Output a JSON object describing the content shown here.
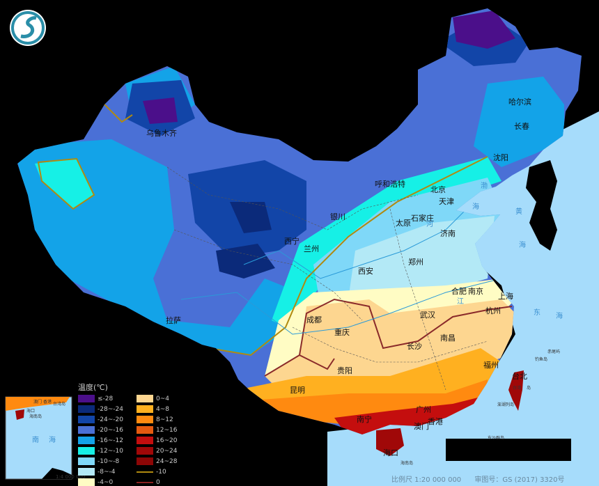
{
  "map": {
    "legend": {
      "title": "温度(℃)",
      "items": [
        {
          "label": "≤-28",
          "color": "#4b0f8a"
        },
        {
          "label": "-28~-24",
          "color": "#0b2a7a"
        },
        {
          "label": "-24~-20",
          "color": "#1245a8"
        },
        {
          "label": "-20~-16",
          "color": "#4a70d6"
        },
        {
          "label": "-16~-12",
          "color": "#13a3e8"
        },
        {
          "label": "-12~-10",
          "color": "#16f0e6"
        },
        {
          "label": "-10~-8",
          "color": "#7fd8f8"
        },
        {
          "label": "-8~-4",
          "color": "#b3e9f6"
        },
        {
          "label": "-4~0",
          "color": "#fffcc4"
        },
        {
          "label": "0~4",
          "color": "#fdd690"
        },
        {
          "label": "4~8",
          "color": "#ffb020"
        },
        {
          "label": "8~12",
          "color": "#ff8a10"
        },
        {
          "label": "12~16",
          "color": "#e55a10"
        },
        {
          "label": "16~20",
          "color": "#c40e0e"
        },
        {
          "label": "20~24",
          "color": "#a00808"
        },
        {
          "label": "24~28",
          "color": "#8c0606"
        }
      ],
      "isolines": [
        {
          "label": "-10",
          "color": "#b08a10"
        },
        {
          "label": "0",
          "color": "#8a2020"
        }
      ]
    },
    "cities": [
      "乌鲁木齐",
      "哈尔滨",
      "长春",
      "沈阳",
      "呼和浩特",
      "北京",
      "天津",
      "石家庄",
      "太原",
      "银川",
      "济南",
      "西宁",
      "兰州",
      "郑州",
      "西安",
      "合肥",
      "南京",
      "上海",
      "杭州",
      "拉萨",
      "成都",
      "武汉",
      "重庆",
      "南昌",
      "长沙",
      "贵阳",
      "福州",
      "台北",
      "昆明",
      "广州",
      "南宁",
      "香港",
      "澳门",
      "海口"
    ],
    "seas": [
      "渤",
      "海",
      "黄",
      "海",
      "东",
      "海",
      "南",
      "海"
    ],
    "islands": [
      "海南岛",
      "台湾",
      "岛",
      "赤尾屿",
      "钓鱼岛",
      "东沙群岛",
      "澎湖列岛"
    ],
    "rivers": [
      "河",
      "江"
    ],
    "inset": {
      "labels": [
        "澳门",
        "香港",
        "台湾岛",
        "海口",
        "海南岛",
        "南",
        "海"
      ],
      "scale": "1:4 000 000"
    },
    "footer": {
      "scale": "比例尺 1:20 000 000",
      "approval": "审图号：GS (2017) 3320号"
    },
    "colors": {
      "sea": "#a6dcfb",
      "background": "#000000"
    },
    "logo": "dragon-emblem"
  }
}
